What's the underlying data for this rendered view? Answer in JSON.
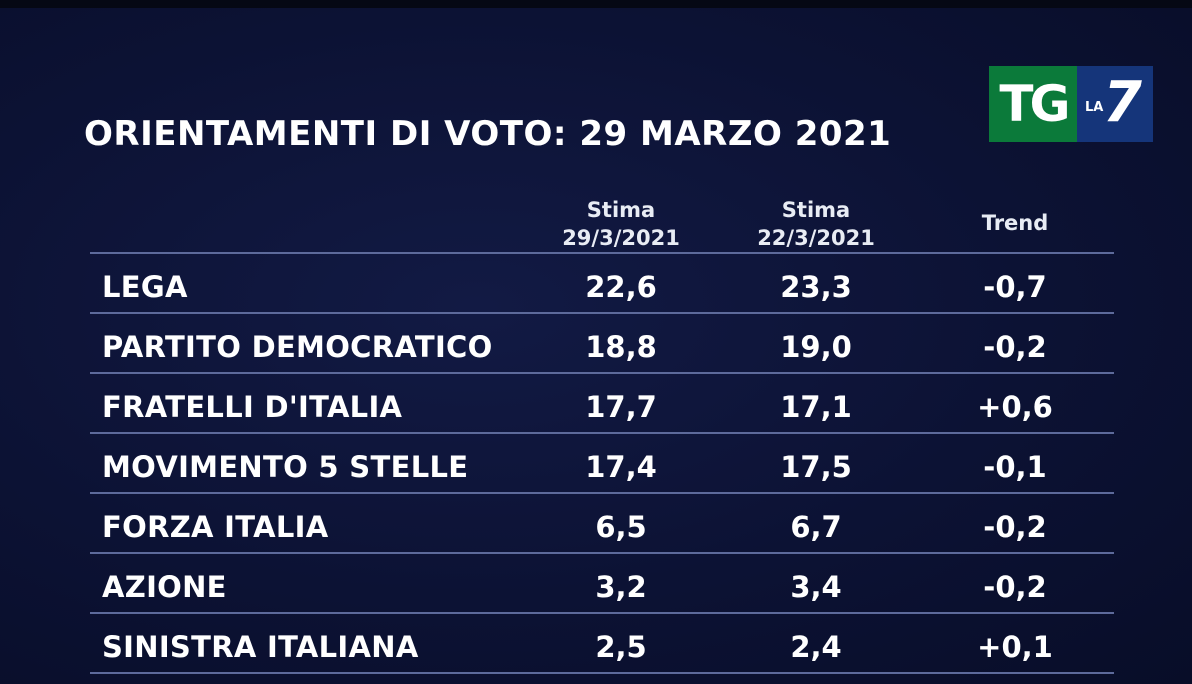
{
  "title": "ORIENTAMENTI DI VOTO: 29 MARZO 2021",
  "logo": {
    "tg": "TG",
    "la": "LA",
    "seven": "7"
  },
  "colors": {
    "background": "#0c1234",
    "logo_green": "#0b7a3a",
    "logo_blue": "#15357a",
    "rule": "#5d6a9b"
  },
  "chart_data": {
    "type": "table",
    "title": "ORIENTAMENTI DI VOTO: 29 MARZO 2021",
    "columns": [
      {
        "line1": "Stima",
        "line2": "29/3/2021"
      },
      {
        "line1": "Stima",
        "line2": "22/3/2021"
      },
      {
        "line1": "Trend",
        "line2": ""
      }
    ],
    "rows": [
      {
        "party": "LEGA",
        "stima_29": "22,6",
        "stima_22": "23,3",
        "trend": "-0,7"
      },
      {
        "party": "PARTITO DEMOCRATICO",
        "stima_29": "18,8",
        "stima_22": "19,0",
        "trend": "-0,2"
      },
      {
        "party": "FRATELLI D'ITALIA",
        "stima_29": "17,7",
        "stima_22": "17,1",
        "trend": "+0,6"
      },
      {
        "party": "MOVIMENTO 5 STELLE",
        "stima_29": "17,4",
        "stima_22": "17,5",
        "trend": "-0,1"
      },
      {
        "party": "FORZA ITALIA",
        "stima_29": "6,5",
        "stima_22": "6,7",
        "trend": "-0,2"
      },
      {
        "party": "AZIONE",
        "stima_29": "3,2",
        "stima_22": "3,4",
        "trend": "-0,2"
      },
      {
        "party": "SINISTRA ITALIANA",
        "stima_29": "2,5",
        "stima_22": "2,4",
        "trend": "+0,1"
      }
    ]
  }
}
